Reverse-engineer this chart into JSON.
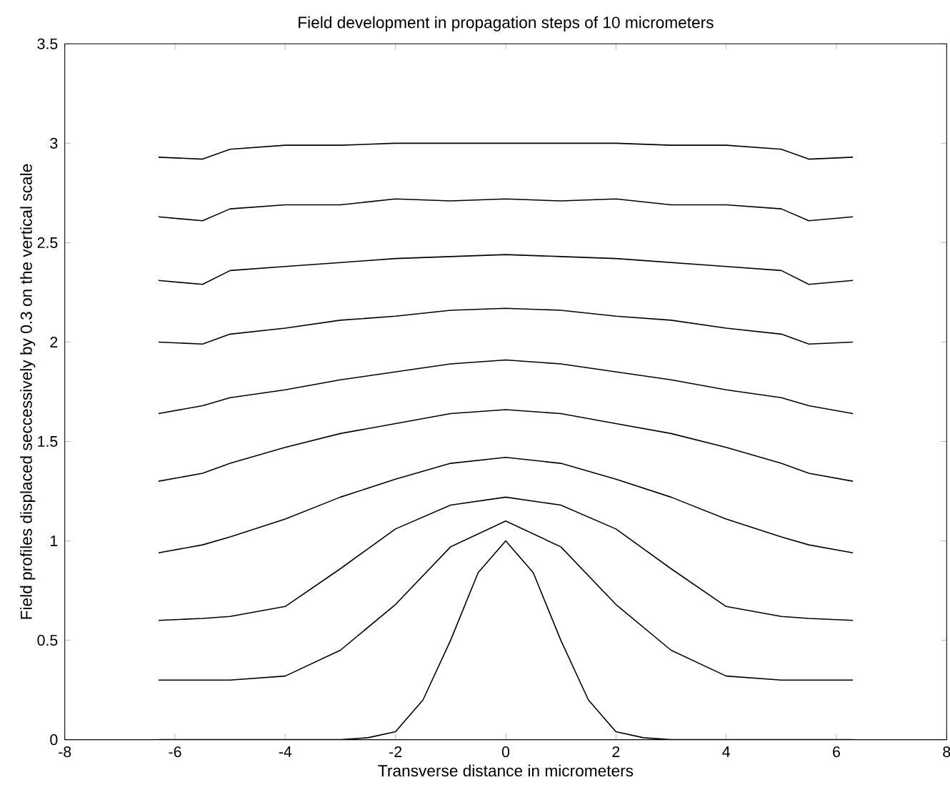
{
  "chart_data": {
    "type": "line",
    "title": "Field development in propagation steps of 10 micrometers",
    "xlabel": "Transverse distance in micrometers",
    "ylabel": "Field profiles displaced seccessively by 0.3 on the vertical scale",
    "x": [
      -6.3,
      -5.5,
      -5,
      -4,
      -3,
      -2,
      -1,
      0,
      1,
      2,
      3,
      4,
      5,
      5.5,
      6.3
    ],
    "series": [
      {
        "color": "#000000",
        "x": [
          -6.3,
          -3,
          -2.5,
          -2,
          -1.5,
          -1,
          -0.5,
          0,
          0.5,
          1,
          1.5,
          2,
          2.5,
          3,
          6.3
        ],
        "values": [
          0,
          0,
          0.01,
          0.04,
          0.2,
          0.5,
          0.84,
          1,
          0.84,
          0.5,
          0.2,
          0.04,
          0.01,
          0,
          0
        ]
      },
      {
        "color": "#000000",
        "values": [
          0.3,
          0.3,
          0.3,
          0.32,
          0.45,
          0.68,
          0.97,
          1.1,
          0.97,
          0.68,
          0.45,
          0.32,
          0.3,
          0.3,
          0.3
        ]
      },
      {
        "color": "#000000",
        "values": [
          0.6,
          0.61,
          0.62,
          0.67,
          0.86,
          1.06,
          1.18,
          1.22,
          1.18,
          1.06,
          0.86,
          0.67,
          0.62,
          0.61,
          0.6
        ]
      },
      {
        "color": "#000000",
        "values": [
          0.94,
          0.98,
          1.02,
          1.11,
          1.22,
          1.31,
          1.39,
          1.42,
          1.39,
          1.31,
          1.22,
          1.11,
          1.02,
          0.98,
          0.94
        ]
      },
      {
        "color": "#000000",
        "values": [
          1.3,
          1.34,
          1.39,
          1.47,
          1.54,
          1.59,
          1.64,
          1.66,
          1.64,
          1.59,
          1.54,
          1.47,
          1.39,
          1.34,
          1.3
        ]
      },
      {
        "color": "#000000",
        "values": [
          1.64,
          1.68,
          1.72,
          1.76,
          1.81,
          1.85,
          1.89,
          1.91,
          1.89,
          1.85,
          1.81,
          1.76,
          1.72,
          1.68,
          1.64
        ]
      },
      {
        "color": "#000000",
        "values": [
          2.0,
          1.99,
          2.04,
          2.07,
          2.11,
          2.13,
          2.16,
          2.17,
          2.16,
          2.13,
          2.11,
          2.07,
          2.04,
          1.99,
          2.0
        ]
      },
      {
        "color": "#000000",
        "values": [
          2.31,
          2.29,
          2.36,
          2.38,
          2.4,
          2.42,
          2.43,
          2.44,
          2.43,
          2.42,
          2.4,
          2.38,
          2.36,
          2.29,
          2.31
        ]
      },
      {
        "color": "#000000",
        "values": [
          2.63,
          2.61,
          2.67,
          2.69,
          2.69,
          2.72,
          2.71,
          2.72,
          2.71,
          2.72,
          2.69,
          2.69,
          2.67,
          2.61,
          2.63
        ]
      },
      {
        "color": "#000000",
        "values": [
          2.93,
          2.92,
          2.97,
          2.99,
          2.99,
          3.0,
          3.0,
          3.0,
          3.0,
          3.0,
          2.99,
          2.99,
          2.97,
          2.92,
          2.93
        ]
      }
    ],
    "xlim": [
      -8,
      8
    ],
    "xticks": [
      -8,
      -6,
      -4,
      -2,
      0,
      2,
      4,
      6,
      8
    ],
    "ylim": [
      0,
      3.5
    ],
    "yticks": [
      0,
      0.5,
      1,
      1.5,
      2,
      2.5,
      3,
      3.5
    ],
    "grid": false,
    "marker": "none",
    "line_style": "solid"
  }
}
